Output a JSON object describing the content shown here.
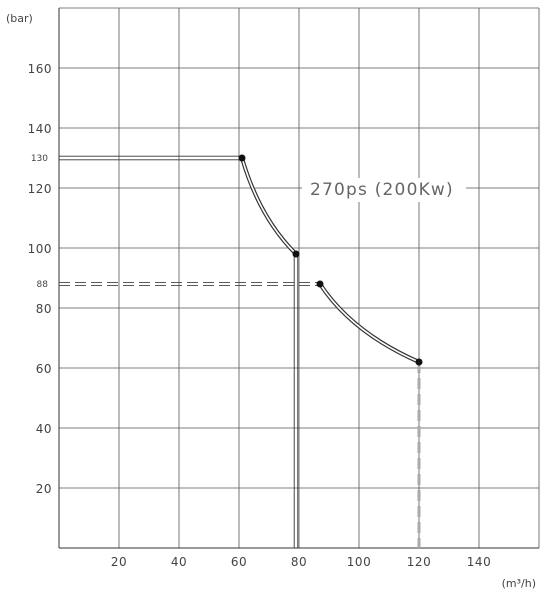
{
  "chart_data": {
    "type": "line",
    "xlabel": "(m³/h)",
    "ylabel": "(bar)",
    "xlim": [
      0,
      160
    ],
    "ylim": [
      0,
      180
    ],
    "x_ticks": [
      20,
      40,
      60,
      80,
      100,
      120,
      140
    ],
    "y_ticks": [
      20,
      40,
      60,
      80,
      100,
      120,
      140,
      160
    ],
    "extra_y_ticks": [
      130,
      88
    ],
    "grid": true,
    "curve_label": "270ps (200Kw)",
    "series": [
      {
        "segments": [
          {
            "kind": "constant",
            "points": [
              {
                "x": 0,
                "y": 130
              },
              {
                "x": 61,
                "y": 130
              }
            ]
          },
          {
            "kind": "curve",
            "points": [
              {
                "x": 61,
                "y": 130
              },
              {
                "x": 79,
                "y": 98
              }
            ]
          },
          {
            "kind": "drop",
            "points": [
              {
                "x": 79,
                "y": 98
              },
              {
                "x": 79,
                "y": 0
              }
            ]
          },
          {
            "kind": "dashed-reference",
            "points": [
              {
                "x": 0,
                "y": 88
              },
              {
                "x": 87,
                "y": 88
              }
            ]
          },
          {
            "kind": "curve",
            "points": [
              {
                "x": 87,
                "y": 88
              },
              {
                "x": 120,
                "y": 62
              }
            ]
          },
          {
            "kind": "dashed-drop",
            "points": [
              {
                "x": 120,
                "y": 62
              },
              {
                "x": 120,
                "y": 0
              }
            ]
          }
        ],
        "markers": [
          {
            "x": 61,
            "y": 130
          },
          {
            "x": 79,
            "y": 98
          },
          {
            "x": 87,
            "y": 88
          },
          {
            "x": 120,
            "y": 62
          }
        ]
      }
    ]
  }
}
